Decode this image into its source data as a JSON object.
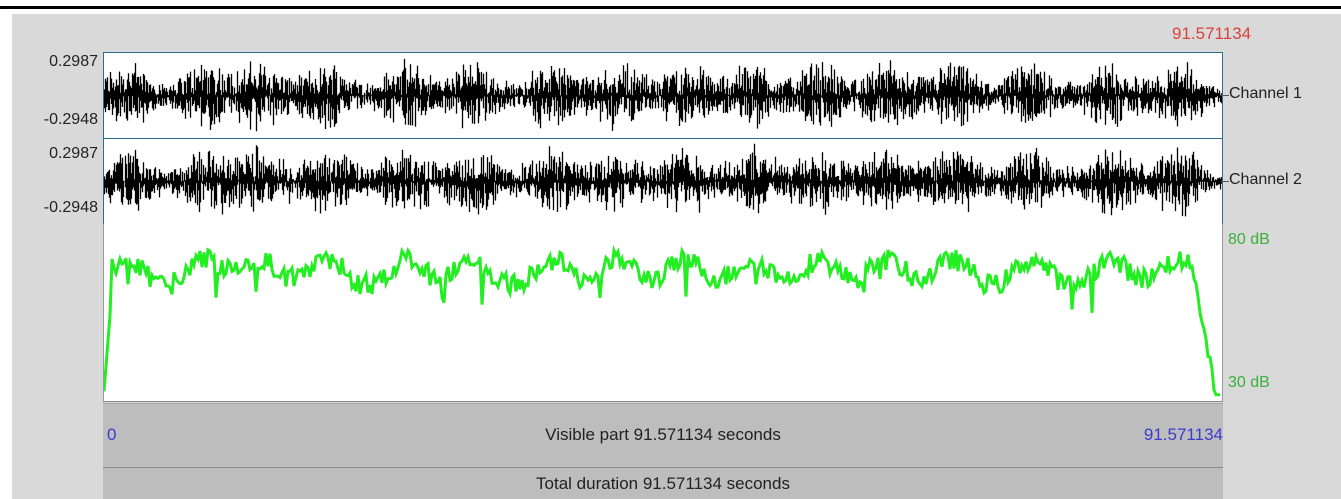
{
  "cursor_time": "91.571134",
  "channels": [
    {
      "label": "Channel 1",
      "max": "0.2987",
      "min": "-0.2948"
    },
    {
      "label": "Channel 2",
      "max": "0.2987",
      "min": "-0.2948"
    }
  ],
  "intensity": {
    "max_label": "80 dB",
    "min_label": "30 dB"
  },
  "visible": {
    "start": "0",
    "end": "91.571134",
    "text": "Visible part 91.571134 seconds"
  },
  "total_text": "Total duration 91.571134 seconds",
  "colors": {
    "waveform": "#000000",
    "intensity": "#22ee22",
    "cursor": "#d9423a",
    "range": "#3b3bcf",
    "frame": "#2b6f8f"
  }
}
